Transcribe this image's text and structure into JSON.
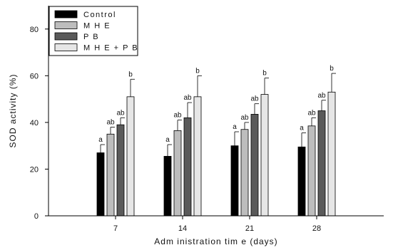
{
  "chart_data": {
    "type": "bar",
    "xlabel": "Adm inistration tim e (days)",
    "ylabel": "SOD activity (%)",
    "ylim": [
      0,
      90
    ],
    "yticks": [
      0,
      20,
      40,
      60,
      80
    ],
    "categories": [
      "7",
      "14",
      "21",
      "28"
    ],
    "grid": false,
    "legend_position": "top-left",
    "series": [
      {
        "name": "Control",
        "color": "#000000",
        "values": [
          27.0,
          25.5,
          30.0,
          29.5
        ],
        "errors": [
          3.5,
          5.0,
          6.0,
          6.0
        ],
        "labels": [
          "a",
          "a",
          "a",
          "a"
        ]
      },
      {
        "name": "M H E",
        "color": "#bdbdbd",
        "values": [
          35.0,
          36.5,
          37.0,
          38.5
        ],
        "errors": [
          3.0,
          4.5,
          3.0,
          3.5
        ],
        "labels": [
          "ab",
          "ab",
          "ab",
          "ab"
        ]
      },
      {
        "name": "P B",
        "color": "#5a5a5a",
        "values": [
          39.0,
          42.0,
          43.5,
          45.0
        ],
        "errors": [
          3.0,
          6.5,
          4.5,
          4.5
        ],
        "labels": [
          "ab",
          "ab",
          "ab",
          "ab"
        ]
      },
      {
        "name": "M H E + P B",
        "color": "#e6e6e6",
        "values": [
          51.0,
          51.0,
          52.0,
          53.0
        ],
        "errors": [
          7.5,
          9.0,
          7.0,
          8.0
        ],
        "labels": [
          "b",
          "b",
          "b",
          "b"
        ]
      }
    ]
  }
}
